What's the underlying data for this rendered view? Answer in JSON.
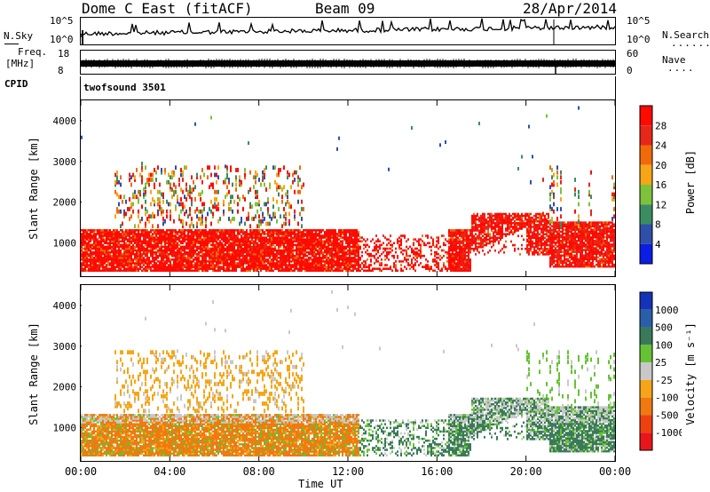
{
  "header": {
    "station": "Dome C East (fitACF)",
    "beam": "Beam 09",
    "date": "28/Apr/2014"
  },
  "sky_panel": {
    "left_label": "N.Sky",
    "right_label": "N.Search",
    "left_ticks": [
      "10^5",
      "10^0"
    ],
    "right_ticks": [
      "10^5",
      "10^0"
    ]
  },
  "freq_panel": {
    "left_label_top": "Freq.",
    "left_label_unit": "[MHz]",
    "left_ticks": [
      "18",
      "8"
    ],
    "right_label": "Nave",
    "right_ticks": [
      "60",
      "0"
    ]
  },
  "cpid": {
    "label": "CPID",
    "value": "twofsound 3501"
  },
  "chart_data": [
    {
      "type": "heatmap",
      "name": "power",
      "ylabel": "Slant Range [km]",
      "ylim": [
        180,
        4500
      ],
      "yticks": [
        "1000",
        "2000",
        "3000",
        "4000"
      ],
      "xlim": [
        "00:00",
        "24:00"
      ],
      "colorbar": {
        "label": "Power [dB]",
        "tick_labels": [
          "4",
          "8",
          "12",
          "16",
          "20",
          "24",
          "28"
        ],
        "colors": [
          "#0a1ee6",
          "#2f4fa8",
          "#3c8c62",
          "#7cc23a",
          "#f5a516",
          "#f06a0a",
          "#e8261a",
          "#ff0a00"
        ]
      }
    },
    {
      "type": "heatmap",
      "name": "velocity",
      "ylabel": "Slant Range [km]",
      "ylim": [
        180,
        4500
      ],
      "yticks": [
        "1000",
        "2000",
        "3000",
        "4000"
      ],
      "xlabel": "Time UT",
      "xticks": [
        "00:00",
        "04:00",
        "08:00",
        "12:00",
        "16:00",
        "20:00",
        "00:00"
      ],
      "colorbar": {
        "label": "Velocity [m s⁻¹]",
        "tick_labels": [
          "1000",
          "500",
          "100",
          "25",
          "-25",
          "-100",
          "-500",
          "-1000"
        ],
        "colors": [
          "#1433b8",
          "#2a5fa8",
          "#3a7a5a",
          "#66c233",
          "#c8c8c8",
          "#f5a516",
          "#f07a10",
          "#f04010",
          "#e8161a"
        ]
      }
    }
  ]
}
